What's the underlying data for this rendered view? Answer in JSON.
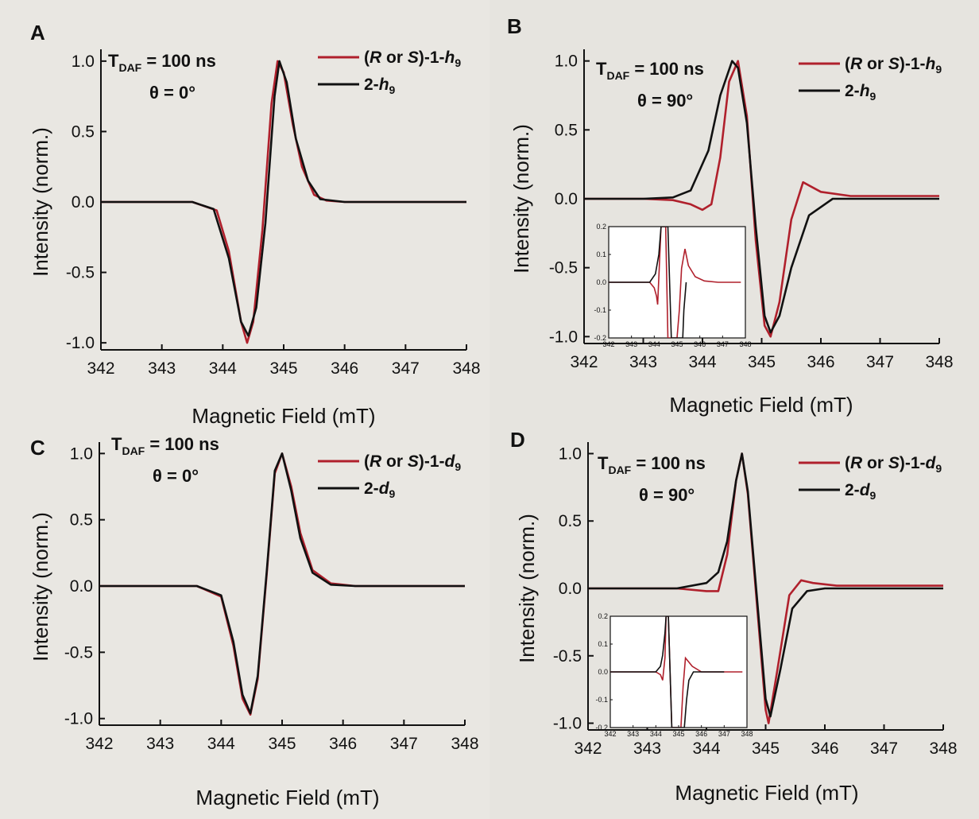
{
  "chart_data": [
    {
      "id": "A",
      "type": "line",
      "panel_label": "A",
      "annotations": {
        "tdaf": "T",
        "tdaf_sub": "DAF",
        "tdaf_value": " = 100 ns",
        "theta": "θ = 0°"
      },
      "xlabel": "Magnetic Field (mT)",
      "ylabel": "Intensity (norm.)",
      "xlim": [
        342,
        348
      ],
      "ylim": [
        -1.05,
        1.05
      ],
      "xticks": [
        342,
        343,
        344,
        345,
        346,
        347,
        348
      ],
      "yticks": [
        1.0,
        0.5,
        0.0,
        -0.5,
        -1.0
      ],
      "ytick_labels": [
        "1.0",
        "0.5",
        "0.0",
        "-0.5",
        "-1.0"
      ],
      "legend_position": "top-right",
      "series": [
        {
          "name": "(R or S)-1-h9",
          "legend": {
            "parts": [
              [
                "(",
                "n"
              ],
              [
                "R",
                "i"
              ],
              [
                " or ",
                "n"
              ],
              [
                "S",
                "i"
              ],
              [
                ")-1-",
                "n"
              ],
              [
                "h",
                "i"
              ],
              [
                "9",
                "sub"
              ]
            ]
          },
          "color": "#b0202c",
          "x": [
            342.0,
            343.5,
            343.9,
            344.1,
            344.3,
            344.4,
            344.5,
            344.65,
            344.8,
            344.9,
            345.0,
            345.15,
            345.3,
            345.5,
            345.7,
            346.0,
            348.0
          ],
          "y": [
            0.0,
            0.0,
            -0.06,
            -0.35,
            -0.85,
            -1.0,
            -0.85,
            -0.2,
            0.7,
            1.0,
            0.92,
            0.55,
            0.25,
            0.05,
            0.01,
            0.0,
            0.0
          ]
        },
        {
          "name": "2-h9",
          "legend": {
            "parts": [
              [
                "2-",
                "n"
              ],
              [
                "h",
                "i"
              ],
              [
                "9",
                "sub"
              ]
            ]
          },
          "color": "#111111",
          "x": [
            342.0,
            343.5,
            343.85,
            344.1,
            344.3,
            344.42,
            344.55,
            344.7,
            344.85,
            344.93,
            345.05,
            345.2,
            345.4,
            345.6,
            346.0,
            348.0
          ],
          "y": [
            0.0,
            0.0,
            -0.05,
            -0.4,
            -0.85,
            -0.95,
            -0.75,
            -0.15,
            0.75,
            1.0,
            0.85,
            0.45,
            0.15,
            0.02,
            0.0,
            0.0
          ]
        }
      ]
    },
    {
      "id": "B",
      "type": "line",
      "panel_label": "B",
      "annotations": {
        "tdaf": "T",
        "tdaf_sub": "DAF",
        "tdaf_value": " = 100 ns",
        "theta": "θ = 90°"
      },
      "xlabel": "Magnetic Field (mT)",
      "ylabel": "Intensity (norm.)",
      "xlim": [
        342,
        348
      ],
      "ylim": [
        -1.05,
        1.05
      ],
      "xticks": [
        342,
        343,
        344,
        345,
        346,
        347,
        348
      ],
      "yticks": [
        1.0,
        0.5,
        0.0,
        -0.5,
        -1.0
      ],
      "ytick_labels": [
        "1.0",
        "0.5",
        "0.0",
        "-0.5",
        "-1.0"
      ],
      "legend_position": "top-right",
      "series": [
        {
          "name": "(R or S)-1-h9",
          "legend": {
            "parts": [
              [
                "(",
                "n"
              ],
              [
                "R",
                "i"
              ],
              [
                " or ",
                "n"
              ],
              [
                "S",
                "i"
              ],
              [
                ")-1-",
                "n"
              ],
              [
                "h",
                "i"
              ],
              [
                "9",
                "sub"
              ]
            ]
          },
          "color": "#b0202c",
          "x": [
            342.0,
            343.0,
            343.5,
            343.8,
            344.0,
            344.15,
            344.3,
            344.45,
            344.6,
            344.75,
            344.9,
            345.05,
            345.15,
            345.3,
            345.5,
            345.7,
            346.0,
            346.5,
            348.0
          ],
          "y": [
            0.0,
            0.0,
            -0.01,
            -0.04,
            -0.08,
            -0.04,
            0.3,
            0.85,
            1.0,
            0.6,
            -0.3,
            -0.92,
            -1.0,
            -0.75,
            -0.15,
            0.12,
            0.05,
            0.02,
            0.02
          ]
        },
        {
          "name": "2-h9",
          "legend": {
            "parts": [
              [
                "2-",
                "n"
              ],
              [
                "h",
                "i"
              ],
              [
                "9",
                "sub"
              ]
            ]
          },
          "color": "#111111",
          "x": [
            342.0,
            343.0,
            343.5,
            343.8,
            344.1,
            344.3,
            344.5,
            344.6,
            344.75,
            344.9,
            345.05,
            345.15,
            345.3,
            345.5,
            345.8,
            346.2,
            348.0
          ],
          "y": [
            0.0,
            0.0,
            0.01,
            0.06,
            0.35,
            0.75,
            1.0,
            0.95,
            0.55,
            -0.2,
            -0.85,
            -0.97,
            -0.85,
            -0.5,
            -0.12,
            0.0,
            0.0
          ]
        }
      ],
      "inset": {
        "xlim": [
          342,
          348
        ],
        "ylim": [
          -0.2,
          0.2
        ],
        "xticks": [
          342,
          343,
          344,
          345,
          346,
          347,
          348
        ],
        "yticks": [
          0.2,
          0.1,
          0.0,
          -0.1,
          -0.2
        ],
        "ytick_labels": [
          "0.2",
          "0.1",
          "0.0",
          "-0.1",
          "-0.2"
        ],
        "series": [
          {
            "color": "#b0202c",
            "x": [
              342.0,
              343.8,
              344.0,
              344.1,
              344.15,
              344.3,
              344.5,
              344.6,
              344.7,
              344.8,
              345.0,
              345.1,
              345.2,
              345.35,
              345.5,
              345.8,
              346.2,
              346.8,
              347.8
            ],
            "y": [
              0.0,
              0.0,
              -0.02,
              -0.05,
              -0.08,
              0.2,
              0.2,
              -0.2,
              -0.2,
              -0.2,
              -0.2,
              -0.1,
              0.05,
              0.12,
              0.06,
              0.02,
              0.005,
              0.0,
              0.0
            ]
          },
          {
            "color": "#111111",
            "x": [
              342.0,
              343.8,
              344.05,
              344.2,
              344.3,
              344.45,
              344.6,
              344.75,
              344.9,
              345.1,
              345.25,
              345.3,
              345.4
            ],
            "y": [
              0.0,
              0.0,
              0.03,
              0.1,
              0.2,
              0.2,
              0.2,
              -0.2,
              -0.2,
              -0.2,
              -0.2,
              -0.1,
              0.0
            ]
          }
        ]
      }
    },
    {
      "id": "C",
      "type": "line",
      "panel_label": "C",
      "annotations": {
        "tdaf": "T",
        "tdaf_sub": "DAF",
        "tdaf_value": " = 100 ns",
        "theta": "θ = 0°"
      },
      "xlabel": "Magnetic Field (mT)",
      "ylabel": "Intensity (norm.)",
      "xlim": [
        342,
        348
      ],
      "ylim": [
        -1.05,
        1.05
      ],
      "xticks": [
        342,
        343,
        344,
        345,
        346,
        347,
        348
      ],
      "yticks": [
        1.0,
        0.5,
        0.0,
        -0.5,
        -1.0
      ],
      "ytick_labels": [
        "1.0",
        "0.5",
        "0.0",
        "-0.5",
        "-1.0"
      ],
      "legend_position": "top-right",
      "series": [
        {
          "name": "(R or S)-1-d9",
          "legend": {
            "parts": [
              [
                "(",
                "n"
              ],
              [
                "R",
                "i"
              ],
              [
                " or ",
                "n"
              ],
              [
                "S",
                "i"
              ],
              [
                ")-1-",
                "n"
              ],
              [
                "d",
                "i"
              ],
              [
                "9",
                "sub"
              ]
            ]
          },
          "color": "#b0202c",
          "x": [
            342.0,
            343.6,
            344.0,
            344.2,
            344.35,
            344.48,
            344.6,
            344.75,
            344.88,
            345.0,
            345.15,
            345.3,
            345.5,
            345.8,
            346.2,
            348.0
          ],
          "y": [
            0.0,
            0.0,
            -0.08,
            -0.45,
            -0.85,
            -0.97,
            -0.7,
            0.1,
            0.85,
            1.0,
            0.75,
            0.4,
            0.12,
            0.02,
            0.0,
            0.0
          ]
        },
        {
          "name": "2-d9",
          "legend": {
            "parts": [
              [
                "2-",
                "n"
              ],
              [
                "d",
                "i"
              ],
              [
                "9",
                "sub"
              ]
            ]
          },
          "color": "#111111",
          "x": [
            342.0,
            343.6,
            344.0,
            344.2,
            344.35,
            344.48,
            344.6,
            344.75,
            344.88,
            345.0,
            345.15,
            345.3,
            345.5,
            345.8,
            346.2,
            348.0
          ],
          "y": [
            0.0,
            0.0,
            -0.07,
            -0.42,
            -0.82,
            -0.96,
            -0.68,
            0.12,
            0.87,
            1.0,
            0.72,
            0.36,
            0.1,
            0.01,
            0.0,
            0.0
          ]
        }
      ]
    },
    {
      "id": "D",
      "type": "line",
      "panel_label": "D",
      "annotations": {
        "tdaf": "T",
        "tdaf_sub": "DAF",
        "tdaf_value": " = 100 ns",
        "theta": "θ = 90°"
      },
      "xlabel": "Magnetic Field (mT)",
      "ylabel": "Intensity (norm.)",
      "xlim": [
        342,
        348
      ],
      "ylim": [
        -1.05,
        1.05
      ],
      "xticks": [
        342,
        343,
        344,
        345,
        346,
        347,
        348
      ],
      "yticks": [
        1.0,
        0.5,
        0.0,
        -0.5,
        -1.0
      ],
      "ytick_labels": [
        "1.0",
        "0.5",
        "0.0",
        "-0.5",
        "-1.0"
      ],
      "legend_position": "top-right",
      "series": [
        {
          "name": "(R or S)-1-d9",
          "legend": {
            "parts": [
              [
                "(",
                "n"
              ],
              [
                "R",
                "i"
              ],
              [
                " or ",
                "n"
              ],
              [
                "S",
                "i"
              ],
              [
                ")-1-",
                "n"
              ],
              [
                "d",
                "i"
              ],
              [
                "9",
                "sub"
              ]
            ]
          },
          "color": "#b0202c",
          "x": [
            342.0,
            343.5,
            344.0,
            344.2,
            344.35,
            344.5,
            344.6,
            344.7,
            344.85,
            345.0,
            345.05,
            345.2,
            345.4,
            345.6,
            345.8,
            346.2,
            348.0
          ],
          "y": [
            0.0,
            0.0,
            -0.02,
            -0.02,
            0.25,
            0.8,
            1.0,
            0.7,
            -0.1,
            -0.9,
            -1.0,
            -0.6,
            -0.05,
            0.06,
            0.04,
            0.02,
            0.02
          ]
        },
        {
          "name": "2-d9",
          "legend": {
            "parts": [
              [
                "2-",
                "n"
              ],
              [
                "d",
                "i"
              ],
              [
                "9",
                "sub"
              ]
            ]
          },
          "color": "#111111",
          "x": [
            342.0,
            343.5,
            344.0,
            344.2,
            344.35,
            344.5,
            344.6,
            344.7,
            344.85,
            345.0,
            345.08,
            345.25,
            345.45,
            345.7,
            346.0,
            348.0
          ],
          "y": [
            0.0,
            0.0,
            0.04,
            0.12,
            0.35,
            0.8,
            1.0,
            0.72,
            -0.05,
            -0.82,
            -0.95,
            -0.6,
            -0.15,
            -0.02,
            0.0,
            0.0
          ]
        }
      ],
      "inset": {
        "xlim": [
          342,
          348
        ],
        "ylim": [
          -0.2,
          0.2
        ],
        "xticks": [
          342,
          343,
          344,
          345,
          346,
          347,
          348
        ],
        "yticks": [
          0.2,
          0.1,
          0.0,
          -0.1,
          -0.2
        ],
        "ytick_labels": [
          "0.2",
          "0.1",
          "0.0",
          "-0.1",
          "-0.2"
        ],
        "series": [
          {
            "color": "#b0202c",
            "x": [
              342.0,
              344.0,
              344.2,
              344.3,
              344.4,
              344.45,
              344.55,
              344.7,
              344.8,
              345.1,
              345.2,
              345.3,
              345.4,
              345.6,
              346.0,
              346.8,
              347.8
            ],
            "y": [
              0.0,
              0.0,
              -0.01,
              -0.03,
              0.05,
              0.2,
              0.2,
              -0.2,
              -0.2,
              -0.2,
              -0.05,
              0.05,
              0.04,
              0.02,
              0.0,
              0.0,
              0.0
            ]
          },
          {
            "color": "#111111",
            "x": [
              342.0,
              344.0,
              344.2,
              344.3,
              344.4,
              344.45,
              344.55,
              344.7,
              344.85,
              345.1,
              345.25,
              345.35,
              345.45,
              345.65,
              346.0,
              347.0
            ],
            "y": [
              0.0,
              0.0,
              0.02,
              0.06,
              0.14,
              0.2,
              0.2,
              -0.2,
              -0.2,
              -0.2,
              -0.2,
              -0.1,
              -0.03,
              0.0,
              0.0,
              0.0
            ]
          }
        ]
      }
    }
  ]
}
